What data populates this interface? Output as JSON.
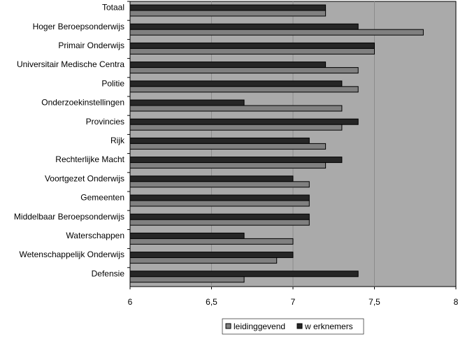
{
  "chart_data": {
    "type": "bar",
    "orientation": "horizontal",
    "categories": [
      "Totaal",
      "Hoger Beroepsonderwijs",
      "Primair Onderwijs",
      "Universitair Medische Centra",
      "Politie",
      "Onderzoekinstellingen",
      "Provincies",
      "Rijk",
      "Rechterlijke Macht",
      "Voortgezet Onderwijs",
      "Gemeenten",
      "Middelbaar Beroepsonderwijs",
      "Waterschappen",
      "Wetenschappelijk Onderwijs",
      "Defensie"
    ],
    "series": [
      {
        "name": "w erknemers",
        "color": "#262626",
        "values": [
          7.2,
          7.4,
          7.5,
          7.2,
          7.3,
          6.7,
          7.4,
          7.1,
          7.3,
          7.0,
          7.1,
          7.1,
          6.7,
          7.0,
          7.4
        ]
      },
      {
        "name": "leidinggevend",
        "color": "#808080",
        "values": [
          7.2,
          7.8,
          7.5,
          7.4,
          7.4,
          7.3,
          7.3,
          7.2,
          7.2,
          7.1,
          7.1,
          7.1,
          7.0,
          6.9,
          6.7
        ]
      }
    ],
    "xlim": [
      6,
      8
    ],
    "xticks": [
      "6",
      "6,5",
      "7",
      "7,5",
      "8"
    ],
    "grid": true,
    "plot_background": "#aaaaaa",
    "legend": {
      "position": "bottom",
      "entries": [
        "leidinggevend",
        "w erknemers"
      ]
    }
  }
}
